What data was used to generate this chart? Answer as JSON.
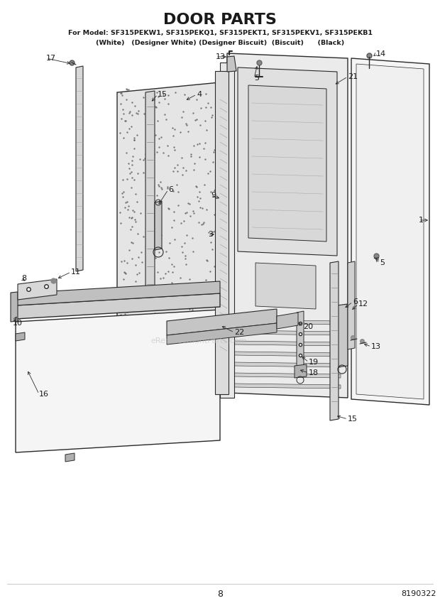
{
  "title": "DOOR PARTS",
  "subtitle_line1": "For Model: SF315PEKW1, SF315PEKQ1, SF315PEKT1, SF315PEKV1, SF315PEKB1",
  "subtitle_line2": "(White)   (Designer White) (Designer Biscuit)  (Biscuit)      (Black)",
  "page_number": "8",
  "part_number": "8190322",
  "bg_color": "#ffffff",
  "line_color": "#2a2a2a",
  "text_color": "#1a1a1a",
  "watermark": "eReplacementParts.com",
  "fig_w": 6.2,
  "fig_h": 8.56,
  "dpi": 100
}
